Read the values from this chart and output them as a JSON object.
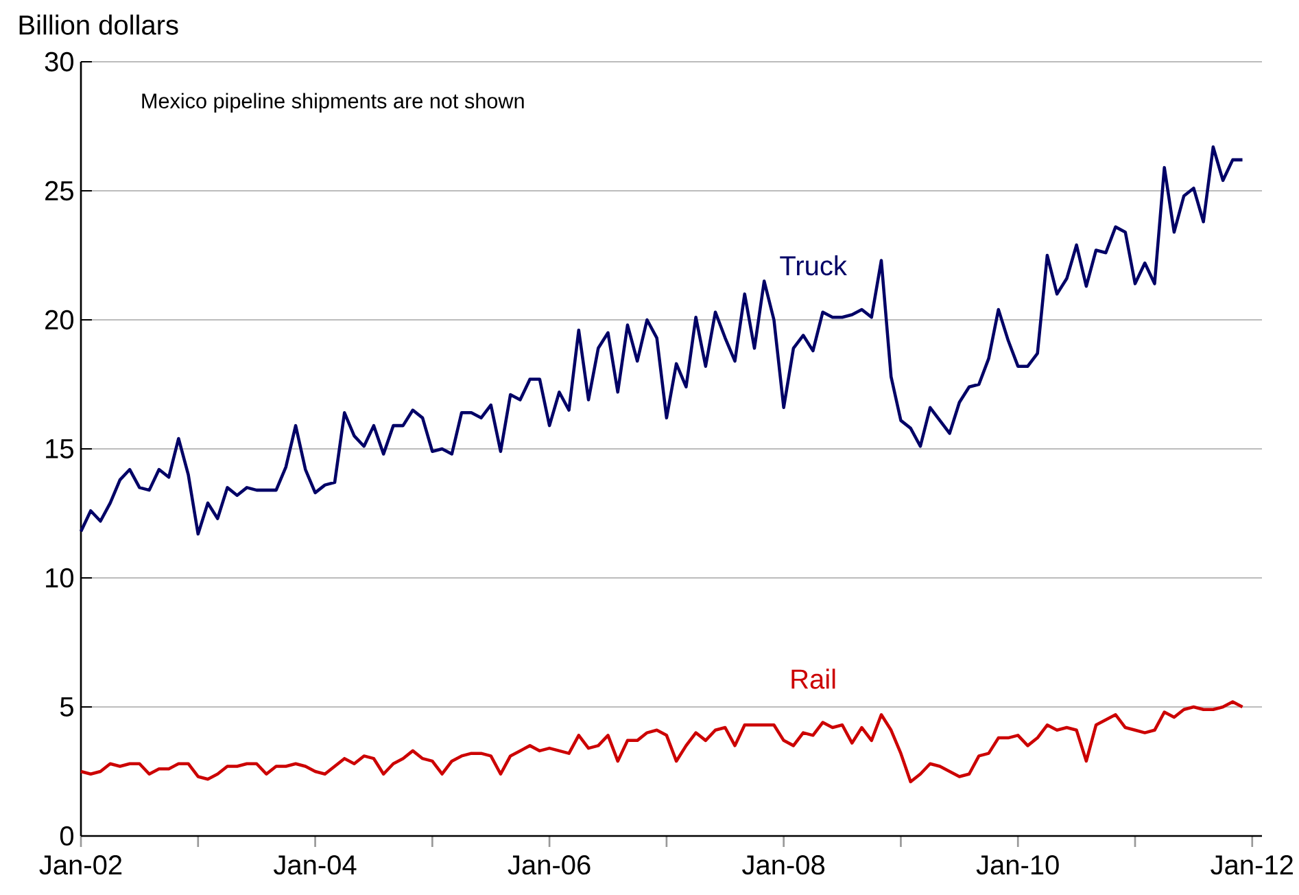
{
  "chart_data": {
    "type": "line",
    "ylabel": "Billion dollars",
    "annotations": [
      "Mexico pipeline shipments are not shown"
    ],
    "x": [
      "2002-01",
      "2002-02",
      "2002-03",
      "2002-04",
      "2002-05",
      "2002-06",
      "2002-07",
      "2002-08",
      "2002-09",
      "2002-10",
      "2002-11",
      "2002-12",
      "2003-01",
      "2003-02",
      "2003-03",
      "2003-04",
      "2003-05",
      "2003-06",
      "2003-07",
      "2003-08",
      "2003-09",
      "2003-10",
      "2003-11",
      "2003-12",
      "2004-01",
      "2004-02",
      "2004-03",
      "2004-04",
      "2004-05",
      "2004-06",
      "2004-07",
      "2004-08",
      "2004-09",
      "2004-10",
      "2004-11",
      "2004-12",
      "2005-01",
      "2005-02",
      "2005-03",
      "2005-04",
      "2005-05",
      "2005-06",
      "2005-07",
      "2005-08",
      "2005-09",
      "2005-10",
      "2005-11",
      "2005-12",
      "2006-01",
      "2006-02",
      "2006-03",
      "2006-04",
      "2006-05",
      "2006-06",
      "2006-07",
      "2006-08",
      "2006-09",
      "2006-10",
      "2006-11",
      "2006-12",
      "2007-01",
      "2007-02",
      "2007-03",
      "2007-04",
      "2007-05",
      "2007-06",
      "2007-07",
      "2007-08",
      "2007-09",
      "2007-10",
      "2007-11",
      "2007-12",
      "2008-01",
      "2008-02",
      "2008-03",
      "2008-04",
      "2008-05",
      "2008-06",
      "2008-07",
      "2008-08",
      "2008-09",
      "2008-10",
      "2008-11",
      "2008-12",
      "2009-01",
      "2009-02",
      "2009-03",
      "2009-04",
      "2009-05",
      "2009-06",
      "2009-07",
      "2009-08",
      "2009-09",
      "2009-10",
      "2009-11",
      "2009-12",
      "2010-01",
      "2010-02",
      "2010-03",
      "2010-04",
      "2010-05",
      "2010-06",
      "2010-07",
      "2010-08",
      "2010-09",
      "2010-10",
      "2010-11",
      "2010-12",
      "2011-01",
      "2011-02",
      "2011-03",
      "2011-04",
      "2011-05",
      "2011-06",
      "2011-07",
      "2011-08",
      "2011-09",
      "2011-10",
      "2011-11",
      "2011-12"
    ],
    "series": [
      {
        "name": "Truck",
        "color": "#000066",
        "values": [
          11.8,
          12.6,
          12.2,
          12.9,
          13.8,
          14.2,
          13.5,
          13.4,
          14.2,
          13.9,
          15.4,
          14.0,
          11.7,
          12.9,
          12.3,
          13.5,
          13.2,
          13.5,
          13.4,
          13.4,
          13.4,
          14.3,
          15.9,
          14.2,
          13.3,
          13.6,
          13.7,
          16.4,
          15.5,
          15.1,
          15.9,
          14.8,
          15.9,
          15.9,
          16.5,
          16.2,
          14.9,
          15.0,
          14.8,
          16.4,
          16.4,
          16.2,
          16.7,
          14.9,
          17.1,
          16.9,
          17.7,
          17.7,
          15.9,
          17.2,
          16.5,
          19.6,
          16.9,
          18.9,
          19.5,
          17.2,
          19.8,
          18.4,
          20.0,
          19.3,
          16.2,
          18.3,
          17.4,
          20.1,
          18.2,
          20.3,
          19.3,
          18.4,
          21.0,
          18.9,
          21.5,
          20.0,
          16.6,
          18.9,
          19.4,
          18.8,
          20.3,
          20.1,
          20.1,
          20.2,
          20.4,
          20.1,
          22.3,
          17.8,
          16.1,
          15.8,
          15.1,
          16.6,
          16.1,
          15.6,
          16.8,
          17.4,
          17.5,
          18.5,
          20.4,
          19.2,
          18.2,
          18.2,
          18.7,
          22.5,
          21.0,
          21.6,
          22.9,
          21.3,
          22.7,
          22.6,
          23.6,
          23.4,
          21.4,
          22.2,
          21.4,
          25.9,
          23.4,
          24.8,
          25.1,
          23.8,
          26.7,
          25.4,
          26.2,
          26.2
        ]
      },
      {
        "name": "Rail",
        "color": "#cc0000",
        "values": [
          2.5,
          2.4,
          2.5,
          2.8,
          2.7,
          2.8,
          2.8,
          2.4,
          2.6,
          2.6,
          2.8,
          2.8,
          2.3,
          2.2,
          2.4,
          2.7,
          2.7,
          2.8,
          2.8,
          2.4,
          2.7,
          2.7,
          2.8,
          2.7,
          2.5,
          2.4,
          2.7,
          3.0,
          2.8,
          3.1,
          3.0,
          2.4,
          2.8,
          3.0,
          3.3,
          3.0,
          2.9,
          2.4,
          2.9,
          3.1,
          3.2,
          3.2,
          3.1,
          2.4,
          3.1,
          3.3,
          3.5,
          3.3,
          3.4,
          3.3,
          3.2,
          3.9,
          3.4,
          3.5,
          3.9,
          2.9,
          3.7,
          3.7,
          4.0,
          4.1,
          3.9,
          2.9,
          3.5,
          4.0,
          3.7,
          4.1,
          4.2,
          3.5,
          4.3,
          4.3,
          4.3,
          4.3,
          3.7,
          3.5,
          4.0,
          3.9,
          4.4,
          4.2,
          4.3,
          3.6,
          4.2,
          3.7,
          4.7,
          4.1,
          3.2,
          2.1,
          2.4,
          2.8,
          2.7,
          2.5,
          2.3,
          2.4,
          3.1,
          3.2,
          3.8,
          3.8,
          3.9,
          3.5,
          3.8,
          4.3,
          4.1,
          4.2,
          4.1,
          2.9,
          4.3,
          4.5,
          4.7,
          4.2,
          4.1,
          4.0,
          4.1,
          4.8,
          4.6,
          4.9,
          5.0,
          4.9,
          4.9,
          5.0,
          5.2,
          5.0
        ]
      }
    ],
    "xlim": [
      "2002-01",
      "2012-02"
    ],
    "xticks": [
      {
        "value": "2002-01",
        "label": "Jan-02"
      },
      {
        "value": "2003-01",
        "label": null
      },
      {
        "value": "2004-01",
        "label": "Jan-04"
      },
      {
        "value": "2005-01",
        "label": null
      },
      {
        "value": "2006-01",
        "label": "Jan-06"
      },
      {
        "value": "2007-01",
        "label": null
      },
      {
        "value": "2008-01",
        "label": "Jan-08"
      },
      {
        "value": "2009-01",
        "label": null
      },
      {
        "value": "2010-01",
        "label": "Jan-10"
      },
      {
        "value": "2011-01",
        "label": null
      },
      {
        "value": "2012-01",
        "label": "Jan-12"
      }
    ],
    "ylim": [
      0,
      30
    ],
    "yticks": [
      0,
      5,
      10,
      15,
      20,
      25,
      30
    ],
    "grid": "y",
    "marker": "none",
    "line_style": "solid"
  }
}
